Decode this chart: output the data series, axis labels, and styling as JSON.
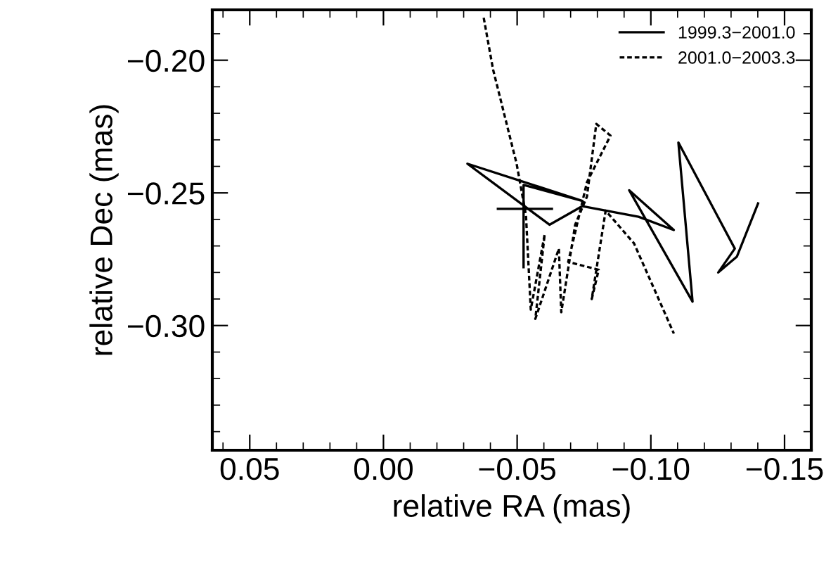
{
  "chart_data": {
    "type": "line",
    "xlabel": "relative RA (mas)",
    "ylabel": "relative Dec (mas)",
    "xlim": [
      0.064,
      -0.16
    ],
    "ylim": [
      -0.347,
      -0.181
    ],
    "xticks": [
      {
        "value": 0.05,
        "label": "0.05"
      },
      {
        "value": 0.0,
        "label": "0.00"
      },
      {
        "value": -0.05,
        "label": "−0.05"
      },
      {
        "value": -0.1,
        "label": "−0.10"
      },
      {
        "value": -0.15,
        "label": "−0.15"
      }
    ],
    "yticks": [
      {
        "value": -0.2,
        "label": "−0.20"
      },
      {
        "value": -0.25,
        "label": "−0.25"
      },
      {
        "value": -0.3,
        "label": "−0.30"
      }
    ],
    "legend": "top right",
    "grid": false,
    "series": [
      {
        "name": "1999.3−2001.0",
        "color": "#000000",
        "line_style": "solid",
        "x": [
          -0.0524,
          -0.0524,
          -0.0744,
          -0.0314,
          -0.0621,
          -0.0744,
          -0.0954,
          -0.1086,
          -0.0919,
          -0.1156,
          -0.1103,
          -0.1314,
          -0.1252,
          -0.1322,
          -0.1401
        ],
        "values": [
          -0.278,
          -0.247,
          -0.253,
          -0.239,
          -0.262,
          -0.255,
          -0.259,
          -0.264,
          -0.249,
          -0.291,
          -0.231,
          -0.271,
          -0.28,
          -0.274,
          -0.254
        ]
      },
      {
        "name": "2001.0−2003.3",
        "color": "#000000",
        "line_style": "dashed",
        "x": [
          -0.0375,
          -0.041,
          -0.0498,
          -0.0533,
          -0.0551,
          -0.0603,
          -0.0568,
          -0.0656,
          -0.0665,
          -0.0717,
          -0.0761,
          -0.0796,
          -0.0849,
          -0.0761,
          -0.0691,
          -0.0805,
          -0.0779,
          -0.0831,
          -0.0937,
          -0.1086
        ],
        "values": [
          -0.184,
          -0.2035,
          -0.239,
          -0.2585,
          -0.294,
          -0.2656,
          -0.2975,
          -0.271,
          -0.295,
          -0.262,
          -0.2514,
          -0.224,
          -0.2284,
          -0.246,
          -0.276,
          -0.279,
          -0.29,
          -0.2567,
          -0.269,
          -0.303
        ]
      },
      {
        "color": "#000000",
        "line_style": "solid",
        "x": [
          -0.0428,
          -0.063
        ],
        "values": [
          -0.256,
          -0.256
        ]
      }
    ]
  }
}
